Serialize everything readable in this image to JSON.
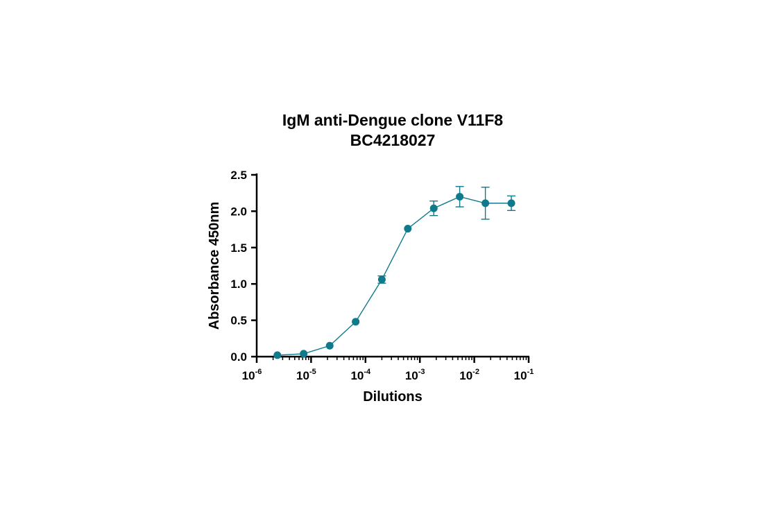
{
  "chart_data": {
    "type": "scatter",
    "title": "IgM anti-Dengue clone V11F8",
    "subtitle": "BC4218027",
    "xlabel": "Dilutions",
    "ylabel": "Absorbance 450nm",
    "xscale": "log",
    "xlim": [
      1e-06,
      0.1
    ],
    "ylim": [
      0,
      2.5
    ],
    "y_ticks": [
      "0.0",
      "0.5",
      "1.0",
      "1.5",
      "2.0",
      "2.5"
    ],
    "x_ticks": [
      {
        "base": "10",
        "exp": "-6"
      },
      {
        "base": "10",
        "exp": "-5"
      },
      {
        "base": "10",
        "exp": "-4"
      },
      {
        "base": "10",
        "exp": "-3"
      },
      {
        "base": "10",
        "exp": "-2"
      },
      {
        "base": "10",
        "exp": "-1"
      }
    ],
    "grid": false,
    "color": "#0e7a8c",
    "series": [
      {
        "x": [
          2.4e-06,
          7.3e-06,
          2.2e-05,
          6.6e-05,
          0.0002,
          0.0006,
          0.0018,
          0.0054,
          0.016,
          0.048
        ],
        "y": [
          0.02,
          0.04,
          0.15,
          0.48,
          1.06,
          1.76,
          2.04,
          2.2,
          2.11,
          2.11
        ],
        "error": [
          0,
          0,
          0,
          0,
          0.05,
          0,
          0.1,
          0.14,
          0.22,
          0.1
        ],
        "marker": "circle",
        "line": "connected"
      }
    ]
  }
}
